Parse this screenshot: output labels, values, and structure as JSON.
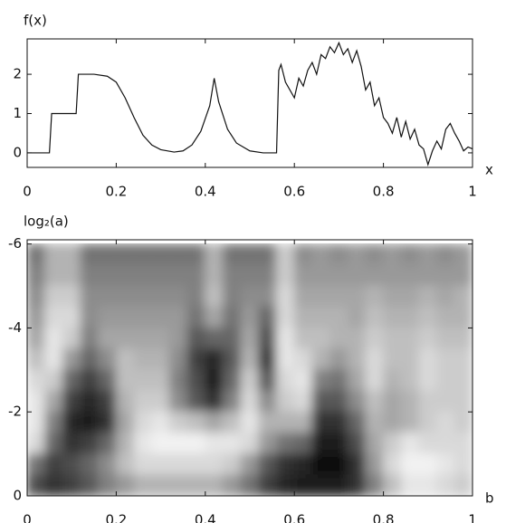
{
  "chart_data": [
    {
      "type": "line",
      "y_label": "f(x)",
      "x_label": "x",
      "color": "#111111",
      "x": [
        0,
        0.05,
        0.055,
        0.11,
        0.115,
        0.15,
        0.18,
        0.2,
        0.22,
        0.24,
        0.26,
        0.28,
        0.3,
        0.33,
        0.35,
        0.37,
        0.39,
        0.41,
        0.42,
        0.43,
        0.45,
        0.47,
        0.5,
        0.53,
        0.56,
        0.565,
        0.57,
        0.58,
        0.59,
        0.6,
        0.61,
        0.62,
        0.63,
        0.64,
        0.65,
        0.66,
        0.67,
        0.68,
        0.69,
        0.7,
        0.71,
        0.72,
        0.73,
        0.74,
        0.75,
        0.76,
        0.77,
        0.78,
        0.79,
        0.8,
        0.81,
        0.82,
        0.83,
        0.84,
        0.85,
        0.86,
        0.87,
        0.88,
        0.89,
        0.9,
        0.91,
        0.92,
        0.93,
        0.94,
        0.95,
        0.96,
        0.97,
        0.98,
        0.99,
        1
      ],
      "values": [
        0,
        0,
        1,
        1,
        2,
        2,
        1.95,
        1.8,
        1.4,
        0.9,
        0.45,
        0.2,
        0.08,
        0.02,
        0.05,
        0.2,
        0.55,
        1.2,
        1.9,
        1.3,
        0.6,
        0.25,
        0.05,
        0,
        0,
        2.1,
        2.25,
        1.8,
        1.6,
        1.4,
        1.9,
        1.7,
        2.1,
        2.3,
        2.0,
        2.5,
        2.4,
        2.7,
        2.55,
        2.8,
        2.5,
        2.65,
        2.3,
        2.6,
        2.2,
        1.6,
        1.8,
        1.2,
        1.4,
        0.9,
        0.75,
        0.5,
        0.9,
        0.4,
        0.8,
        0.35,
        0.6,
        0.2,
        0.1,
        -0.3,
        0.05,
        0.3,
        0.1,
        0.6,
        0.75,
        0.5,
        0.3,
        0.05,
        0.15,
        0.1
      ],
      "xlim": [
        0,
        1
      ],
      "xticks": [
        0,
        0.2,
        0.4,
        0.6,
        0.8,
        1
      ],
      "ylim": [
        -0.37,
        2.9
      ],
      "yticks": [
        0,
        1,
        2
      ]
    },
    {
      "type": "heatmap",
      "y_label": "log₂(a)",
      "x_label": "b",
      "colormap": "gray",
      "x": [
        0.02,
        0.06,
        0.1,
        0.14,
        0.18,
        0.22,
        0.26,
        0.3,
        0.34,
        0.38,
        0.42,
        0.46,
        0.5,
        0.54,
        0.58,
        0.62,
        0.66,
        0.7,
        0.74,
        0.78,
        0.82,
        0.86,
        0.9,
        0.94,
        0.98
      ],
      "y": [
        -5.75,
        -5.25,
        -4.75,
        -4.25,
        -3.75,
        -3.25,
        -2.75,
        -2.25,
        -1.75,
        -1.25,
        -0.75,
        -0.25
      ],
      "z": [
        [
          0.45,
          0.7,
          0.7,
          0.45,
          0.45,
          0.45,
          0.45,
          0.45,
          0.45,
          0.45,
          0.7,
          0.45,
          0.45,
          0.45,
          0.8,
          0.55,
          0.6,
          0.55,
          0.6,
          0.55,
          0.6,
          0.55,
          0.6,
          0.55,
          0.6
        ],
        [
          0.5,
          0.7,
          0.7,
          0.5,
          0.5,
          0.5,
          0.5,
          0.5,
          0.5,
          0.5,
          0.7,
          0.5,
          0.5,
          0.5,
          0.8,
          0.6,
          0.6,
          0.6,
          0.6,
          0.6,
          0.6,
          0.6,
          0.6,
          0.6,
          0.6
        ],
        [
          0.55,
          0.8,
          0.8,
          0.55,
          0.55,
          0.55,
          0.55,
          0.55,
          0.55,
          0.5,
          0.75,
          0.5,
          0.55,
          0.55,
          0.85,
          0.65,
          0.65,
          0.65,
          0.65,
          0.7,
          0.65,
          0.65,
          0.7,
          0.65,
          0.7
        ],
        [
          0.6,
          0.85,
          0.85,
          0.55,
          0.6,
          0.6,
          0.6,
          0.6,
          0.6,
          0.45,
          0.65,
          0.45,
          0.6,
          0.4,
          0.85,
          0.7,
          0.7,
          0.7,
          0.65,
          0.75,
          0.7,
          0.7,
          0.75,
          0.7,
          0.7
        ],
        [
          0.65,
          0.9,
          0.8,
          0.5,
          0.65,
          0.65,
          0.65,
          0.65,
          0.6,
          0.35,
          0.4,
          0.4,
          0.65,
          0.3,
          0.9,
          0.75,
          0.75,
          0.7,
          0.7,
          0.8,
          0.75,
          0.75,
          0.8,
          0.75,
          0.75
        ],
        [
          0.75,
          0.9,
          0.6,
          0.4,
          0.55,
          0.75,
          0.7,
          0.7,
          0.55,
          0.25,
          0.15,
          0.35,
          0.7,
          0.2,
          0.9,
          0.85,
          0.7,
          0.6,
          0.7,
          0.85,
          0.75,
          0.75,
          0.85,
          0.8,
          0.8
        ],
        [
          0.85,
          0.8,
          0.4,
          0.25,
          0.4,
          0.75,
          0.75,
          0.75,
          0.5,
          0.3,
          0.1,
          0.4,
          0.8,
          0.35,
          0.85,
          0.9,
          0.5,
          0.45,
          0.65,
          0.85,
          0.7,
          0.75,
          0.85,
          0.8,
          0.8
        ],
        [
          0.9,
          0.65,
          0.25,
          0.15,
          0.25,
          0.7,
          0.8,
          0.8,
          0.55,
          0.35,
          0.2,
          0.5,
          0.85,
          0.55,
          0.8,
          0.85,
          0.35,
          0.35,
          0.55,
          0.75,
          0.65,
          0.7,
          0.8,
          0.8,
          0.8
        ],
        [
          0.9,
          0.5,
          0.15,
          0.1,
          0.2,
          0.65,
          0.85,
          0.9,
          0.8,
          0.75,
          0.65,
          0.75,
          0.9,
          0.7,
          0.7,
          0.7,
          0.2,
          0.2,
          0.4,
          0.7,
          0.65,
          0.7,
          0.8,
          0.85,
          0.8
        ],
        [
          0.85,
          0.4,
          0.2,
          0.25,
          0.4,
          0.7,
          0.9,
          0.95,
          0.95,
          0.95,
          0.9,
          0.9,
          0.85,
          0.6,
          0.45,
          0.4,
          0.1,
          0.1,
          0.3,
          0.65,
          0.8,
          0.9,
          0.85,
          0.85,
          0.85
        ],
        [
          0.45,
          0.25,
          0.3,
          0.4,
          0.55,
          0.75,
          0.85,
          0.85,
          0.85,
          0.85,
          0.85,
          0.8,
          0.6,
          0.35,
          0.2,
          0.15,
          0.05,
          0.05,
          0.2,
          0.6,
          0.85,
          0.95,
          0.95,
          0.9,
          0.85
        ],
        [
          0.3,
          0.2,
          0.25,
          0.35,
          0.5,
          0.6,
          0.7,
          0.7,
          0.7,
          0.7,
          0.7,
          0.6,
          0.45,
          0.25,
          0.15,
          0.1,
          0.1,
          0.1,
          0.2,
          0.5,
          0.75,
          0.9,
          0.9,
          0.85,
          0.8
        ]
      ],
      "xlim": [
        0,
        1
      ],
      "xticks": [
        0,
        0.2,
        0.4,
        0.6,
        0.8,
        1
      ],
      "ylim": [
        0,
        -6.1
      ],
      "yticks": [
        0,
        -2,
        -4,
        -6
      ]
    }
  ]
}
